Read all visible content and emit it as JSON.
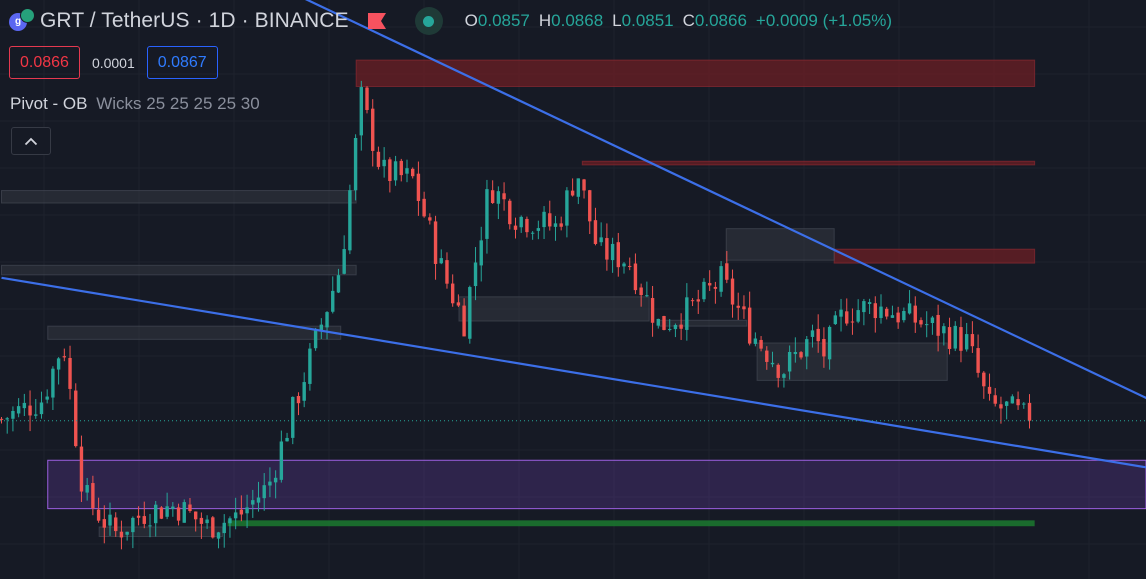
{
  "header": {
    "title": "GRT / TetherUS · 1D · BINANCE",
    "flag_icon": "flag-icon",
    "live_icon": "live-status-dot-icon",
    "ohlc": [
      {
        "key": "O",
        "value": "0.0857"
      },
      {
        "key": "H",
        "value": "0.0868"
      },
      {
        "key": "L",
        "value": "0.0851"
      },
      {
        "key": "C",
        "value": "0.0866"
      }
    ],
    "change": "+0.0009 (+1.05%)"
  },
  "trade": {
    "sell_price": "0.0866",
    "spread": "0.0001",
    "buy_price": "0.0867"
  },
  "indicator": {
    "name": "Pivot - OB",
    "params": "Wicks 25 25 25 25 30"
  },
  "colors": {
    "background": "#161a25",
    "grid": "#1e222d",
    "up_candle": "#26a69a",
    "down_candle": "#ef5350",
    "trendline": "#3c6fe8",
    "bearish_ob": "#7a1f24",
    "neutral_ob": "#3a3d47",
    "demand_zone": "#6e3fb0",
    "support_line": "#1b7a2f",
    "sell": "#f23645",
    "buy": "#2962ff"
  },
  "chart_data": {
    "type": "candlestick",
    "symbol": "GRT / TetherUS",
    "interval": "1D",
    "exchange": "BINANCE",
    "ylim": [
      0.065,
      0.144
    ],
    "last_close": 0.0866,
    "candles_count": 180,
    "price_waypoints": [
      [
        0,
        0.0868
      ],
      [
        8,
        0.0895
      ],
      [
        12,
        0.0975
      ],
      [
        16,
        0.0765
      ],
      [
        22,
        0.0712
      ],
      [
        28,
        0.0742
      ],
      [
        34,
        0.075
      ],
      [
        40,
        0.0722
      ],
      [
        46,
        0.0735
      ],
      [
        52,
        0.0778
      ],
      [
        58,
        0.0908
      ],
      [
        66,
        0.1078
      ],
      [
        70,
        0.1305
      ],
      [
        74,
        0.1205
      ],
      [
        80,
        0.1195
      ],
      [
        86,
        0.1065
      ],
      [
        90,
        0.1002
      ],
      [
        95,
        0.1188
      ],
      [
        100,
        0.1145
      ],
      [
        108,
        0.113
      ],
      [
        112,
        0.1207
      ],
      [
        116,
        0.1098
      ],
      [
        122,
        0.1085
      ],
      [
        128,
        0.0995
      ],
      [
        134,
        0.1018
      ],
      [
        140,
        0.1058
      ],
      [
        146,
        0.0985
      ],
      [
        152,
        0.0935
      ],
      [
        158,
        0.0982
      ],
      [
        160,
        0.0958
      ],
      [
        164,
        0.1015
      ],
      [
        170,
        0.1022
      ],
      [
        176,
        0.1008
      ],
      [
        182,
        0.0992
      ],
      [
        188,
        0.0972
      ],
      [
        192,
        0.0885
      ],
      [
        196,
        0.0882
      ],
      [
        200,
        0.0866
      ]
    ],
    "trendlines": [
      {
        "name": "upper",
        "from": [
          37,
          0.1515
        ],
        "to": [
          223,
          0.0896
        ]
      },
      {
        "name": "lower",
        "from": [
          0,
          0.1061
        ],
        "to": [
          223,
          0.0802
        ]
      }
    ],
    "order_blocks": [
      {
        "kind": "bearish",
        "x": [
          69,
          201
        ],
        "y": [
          0.1322,
          0.1358
        ]
      },
      {
        "kind": "bearish",
        "x": [
          113,
          201
        ],
        "y": [
          0.1215,
          0.122
        ]
      },
      {
        "kind": "bearish",
        "x": [
          162,
          201
        ],
        "y": [
          0.1081,
          0.11
        ]
      },
      {
        "kind": "neutral",
        "x": [
          0,
          69
        ],
        "y": [
          0.1163,
          0.118
        ]
      },
      {
        "kind": "neutral",
        "x": [
          0,
          69
        ],
        "y": [
          0.1065,
          0.1078
        ]
      },
      {
        "kind": "neutral",
        "x": [
          141,
          162
        ],
        "y": [
          0.1085,
          0.1128
        ]
      },
      {
        "kind": "neutral",
        "x": [
          9,
          66
        ],
        "y": [
          0.0977,
          0.0995
        ]
      },
      {
        "kind": "neutral",
        "x": [
          89,
          126
        ],
        "y": [
          0.1002,
          0.1035
        ]
      },
      {
        "kind": "neutral",
        "x": [
          128,
          145
        ],
        "y": [
          0.0995,
          0.1003
        ]
      },
      {
        "kind": "neutral",
        "x": [
          147,
          184
        ],
        "y": [
          0.0921,
          0.0972
        ]
      },
      {
        "kind": "neutral",
        "x": [
          19,
          43
        ],
        "y": [
          0.0708,
          0.0721
        ]
      }
    ],
    "zones": [
      {
        "kind": "demand",
        "x": [
          9,
          223
        ],
        "y": [
          0.0746,
          0.0812
        ]
      },
      {
        "kind": "support",
        "x": [
          44,
          201
        ],
        "y": [
          0.0722,
          0.073
        ]
      }
    ],
    "last_price_line": 0.0866
  }
}
